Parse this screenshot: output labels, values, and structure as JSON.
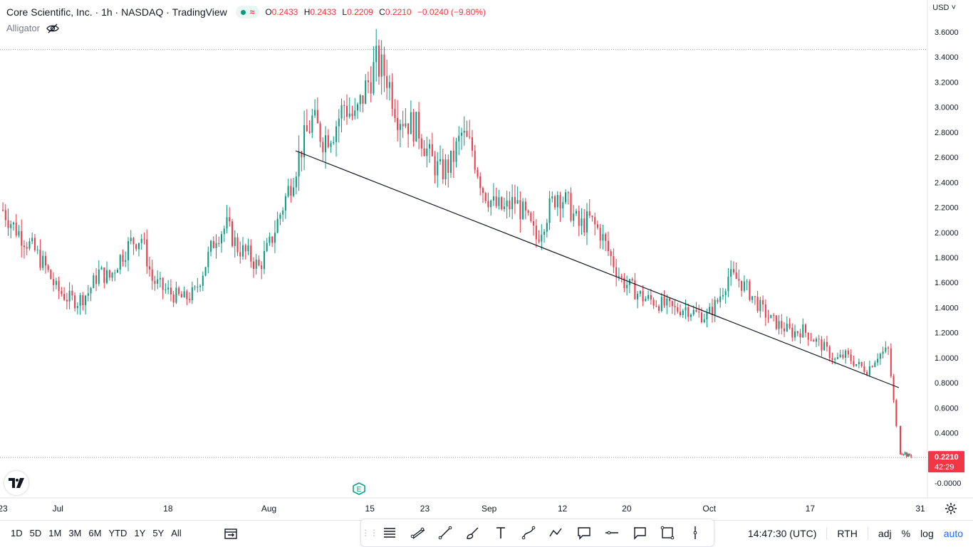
{
  "header": {
    "symbol": "Core Scientific, Inc.",
    "interval": "1h",
    "exchange": "NASDAQ",
    "source": "TradingView",
    "ohlc": {
      "open": "0.2433",
      "high": "0.2433",
      "low": "0.2209",
      "close": "0.2210",
      "change": "−0.0240 (−9.80%)"
    },
    "ohlc_keys": {
      "o": "O",
      "h": "H",
      "l": "L",
      "c": "C"
    }
  },
  "indicator": {
    "name": "Alligator",
    "icon": "eye-slash-icon"
  },
  "currency": "USD",
  "price_label": {
    "value": "0.2210",
    "countdown": "42:29"
  },
  "colors": {
    "up": "#089981",
    "down": "#f23645",
    "trendline": "#131722"
  },
  "ranges": [
    "1D",
    "5D",
    "1M",
    "3M",
    "6M",
    "YTD",
    "1Y",
    "5Y",
    "All"
  ],
  "draw_tools": [
    "long-short-icon",
    "trend-channel-icon",
    "trend-line-icon",
    "brush-icon",
    "text-icon",
    "path-icon",
    "polyline-icon",
    "callout-icon",
    "horizontal-line-icon",
    "note-icon",
    "rectangle-icon",
    "vertical-line-icon"
  ],
  "status": {
    "time": "14:47:30 (UTC)",
    "session": "RTH",
    "adj": "adj",
    "percent": "%",
    "log": "log",
    "auto": "auto"
  },
  "chart_data": {
    "type": "candlestick",
    "title": "Core Scientific, Inc. · 1h · NASDAQ",
    "y_ticks": [
      "3.6000",
      "3.4000",
      "3.2000",
      "3.0000",
      "2.8000",
      "2.6000",
      "2.4000",
      "2.2000",
      "2.0000",
      "1.8000",
      "1.6000",
      "1.4000",
      "1.2000",
      "1.0000",
      "0.8000",
      "0.6000",
      "0.4000",
      "-0.0000"
    ],
    "ylim": [
      -0.0,
      3.65
    ],
    "x_ticks": [
      {
        "label": "23",
        "i": 0
      },
      {
        "label": "Jul",
        "i": 6
      },
      {
        "label": "18",
        "i": 18
      },
      {
        "label": "Aug",
        "i": 29
      },
      {
        "label": "15",
        "i": 40
      },
      {
        "label": "23",
        "i": 46
      },
      {
        "label": "Sep",
        "i": 53
      },
      {
        "label": "12",
        "i": 61
      },
      {
        "label": "20",
        "i": 68
      },
      {
        "label": "Oct",
        "i": 77
      },
      {
        "label": "17",
        "i": 88
      },
      {
        "label": "31",
        "i": 100
      }
    ],
    "x_count": 100,
    "high_line": 3.46,
    "last_price": 0.221,
    "daily_closes": [
      2.18,
      2.05,
      1.95,
      1.85,
      1.72,
      1.55,
      1.48,
      1.45,
      1.52,
      1.68,
      1.64,
      1.8,
      1.92,
      1.96,
      1.62,
      1.55,
      1.5,
      1.47,
      1.52,
      1.75,
      1.98,
      2.05,
      1.88,
      1.82,
      1.72,
      1.9,
      2.15,
      2.4,
      2.68,
      2.9,
      2.75,
      2.82,
      3.02,
      2.9,
      3.15,
      3.35,
      3.25,
      2.95,
      2.88,
      2.82,
      2.6,
      2.48,
      2.55,
      2.78,
      2.66,
      2.35,
      2.22,
      2.18,
      2.25,
      2.12,
      1.95,
      2.15,
      2.32,
      2.22,
      2.05,
      2.1,
      2.0,
      1.8,
      1.62,
      1.55,
      1.48,
      1.45,
      1.42,
      1.38,
      1.4,
      1.35,
      1.33,
      1.45,
      1.65,
      1.62,
      1.52,
      1.4,
      1.3,
      1.25,
      1.2,
      1.22,
      1.15,
      1.08,
      0.98,
      1.02,
      0.95,
      0.9,
      1.02,
      1.06,
      0.24,
      0.22
    ],
    "trendline": [
      {
        "i": 32,
        "v": 2.65
      },
      {
        "i": 97,
        "v": 0.77
      }
    ]
  }
}
